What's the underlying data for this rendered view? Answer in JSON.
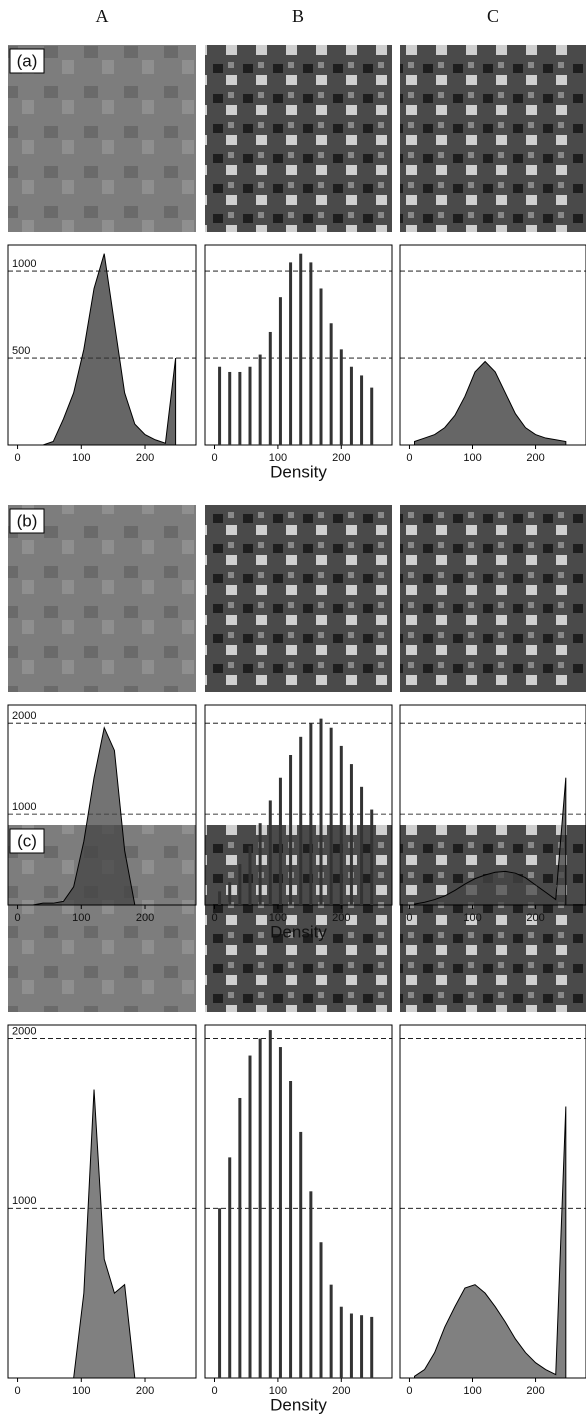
{
  "columns": [
    "A",
    "B",
    "C"
  ],
  "rows": [
    "(a)",
    "(b)",
    "(c)"
  ],
  "chart_data": [
    {
      "type": "area",
      "color": "#333333",
      "x": [
        8,
        24,
        40,
        56,
        72,
        88,
        104,
        120,
        136,
        152,
        168,
        184,
        200,
        216,
        232,
        248
      ],
      "values": [
        0,
        0,
        0,
        20,
        150,
        300,
        550,
        900,
        1100,
        700,
        300,
        120,
        60,
        30,
        10,
        500
      ],
      "xlim": [
        -15,
        280
      ],
      "ylim": [
        0,
        1150
      ],
      "xticks": [
        0,
        100,
        200
      ],
      "yticks": [
        500,
        1000
      ],
      "ytick_labels": true
    },
    {
      "type": "bar",
      "color": "#333333",
      "x": [
        8,
        24,
        40,
        56,
        72,
        88,
        104,
        120,
        136,
        152,
        168,
        184,
        200,
        216,
        232,
        248
      ],
      "values": [
        450,
        420,
        420,
        450,
        520,
        650,
        850,
        1050,
        1100,
        1050,
        900,
        700,
        550,
        450,
        400,
        330
      ],
      "xlim": [
        -15,
        280
      ],
      "ylim": [
        0,
        1150
      ],
      "xticks": [
        0,
        100,
        200
      ],
      "yticks": [
        500,
        1000
      ],
      "ytick_labels": false,
      "xlabel": "Density"
    },
    {
      "type": "area",
      "color": "#333333",
      "x": [
        8,
        24,
        40,
        56,
        72,
        88,
        104,
        120,
        136,
        152,
        168,
        184,
        200,
        216,
        232,
        248
      ],
      "values": [
        20,
        40,
        60,
        100,
        170,
        280,
        420,
        480,
        420,
        300,
        180,
        100,
        60,
        40,
        30,
        20
      ],
      "xlim": [
        -15,
        280
      ],
      "ylim": [
        0,
        1150
      ],
      "xticks": [
        0,
        100,
        200
      ],
      "yticks": [
        500,
        1000
      ],
      "ytick_labels": false
    },
    {
      "type": "area",
      "color": "#444444",
      "x": [
        8,
        24,
        40,
        56,
        72,
        88,
        104,
        120,
        136,
        152,
        168,
        184,
        200,
        216,
        232,
        248
      ],
      "values": [
        0,
        0,
        20,
        20,
        40,
        200,
        700,
        1400,
        1950,
        1700,
        600,
        0,
        0,
        0,
        0,
        0
      ],
      "xlim": [
        -15,
        280
      ],
      "ylim": [
        0,
        2200
      ],
      "xticks": [
        0,
        100,
        200
      ],
      "yticks": [
        1000,
        2000
      ],
      "ytick_labels": true
    },
    {
      "type": "bar",
      "color": "#333333",
      "x": [
        8,
        24,
        40,
        56,
        72,
        88,
        104,
        120,
        136,
        152,
        168,
        184,
        200,
        216,
        232,
        248
      ],
      "values": [
        150,
        250,
        450,
        650,
        900,
        1150,
        1400,
        1650,
        1850,
        2000,
        2050,
        1950,
        1750,
        1550,
        1300,
        1050
      ],
      "xlim": [
        -15,
        280
      ],
      "ylim": [
        0,
        2200
      ],
      "xticks": [
        0,
        100,
        200
      ],
      "yticks": [
        1000,
        2000
      ],
      "ytick_labels": false,
      "xlabel": "Density"
    },
    {
      "type": "area",
      "color": "#444444",
      "x": [
        8,
        24,
        40,
        56,
        72,
        88,
        104,
        120,
        136,
        152,
        168,
        184,
        200,
        216,
        232,
        248
      ],
      "values": [
        10,
        30,
        60,
        100,
        160,
        230,
        290,
        330,
        360,
        370,
        350,
        300,
        220,
        140,
        60,
        1400
      ],
      "xlim": [
        -15,
        280
      ],
      "ylim": [
        0,
        2200
      ],
      "xticks": [
        0,
        100,
        200
      ],
      "yticks": [
        1000,
        2000
      ],
      "ytick_labels": false
    },
    {
      "type": "area",
      "color": "#555555",
      "x": [
        8,
        24,
        40,
        56,
        72,
        88,
        104,
        120,
        136,
        152,
        168,
        184,
        200,
        216,
        232,
        248
      ],
      "values": [
        0,
        0,
        0,
        0,
        0,
        0,
        500,
        1700,
        700,
        500,
        550,
        0,
        0,
        0,
        0,
        0
      ],
      "xlim": [
        -15,
        280
      ],
      "ylim": [
        0,
        2080
      ],
      "xticks": [
        0,
        100,
        200
      ],
      "yticks": [
        1000,
        2000
      ],
      "ytick_labels": true
    },
    {
      "type": "bar",
      "color": "#333333",
      "x": [
        8,
        24,
        40,
        56,
        72,
        88,
        104,
        120,
        136,
        152,
        168,
        184,
        200,
        216,
        232,
        248
      ],
      "values": [
        1000,
        1300,
        1650,
        1900,
        2000,
        2050,
        1950,
        1750,
        1450,
        1100,
        800,
        550,
        420,
        380,
        370,
        360
      ],
      "xlim": [
        -15,
        280
      ],
      "ylim": [
        0,
        2080
      ],
      "xticks": [
        0,
        100,
        200
      ],
      "yticks": [
        1000,
        2000
      ],
      "ytick_labels": false,
      "xlabel": "Density"
    },
    {
      "type": "area",
      "color": "#555555",
      "x": [
        8,
        24,
        40,
        56,
        72,
        88,
        104,
        120,
        136,
        152,
        168,
        184,
        200,
        216,
        232,
        248
      ],
      "values": [
        10,
        50,
        150,
        300,
        420,
        530,
        550,
        500,
        420,
        330,
        230,
        150,
        90,
        50,
        20,
        1600
      ],
      "xlim": [
        -15,
        280
      ],
      "ylim": [
        0,
        2080
      ],
      "xticks": [
        0,
        100,
        200
      ],
      "yticks": [
        1000,
        2000
      ],
      "ytick_labels": false
    }
  ]
}
